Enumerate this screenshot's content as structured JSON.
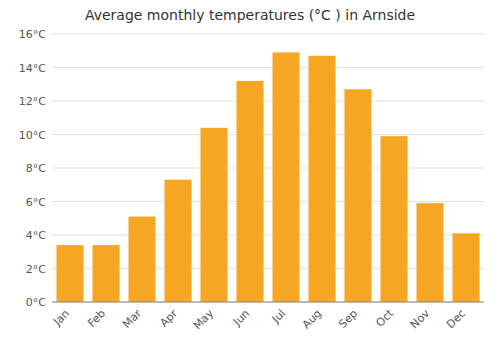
{
  "chart_data": {
    "type": "bar",
    "title": "Average monthly temperatures (°C ) in Arnside",
    "categories": [
      "Jan",
      "Feb",
      "Mar",
      "Apr",
      "May",
      "Jun",
      "Jul",
      "Aug",
      "Sep",
      "Oct",
      "Nov",
      "Dec"
    ],
    "values": [
      3.4,
      3.4,
      5.1,
      7.3,
      10.4,
      13.2,
      14.9,
      14.7,
      12.7,
      9.9,
      5.9,
      4.1
    ],
    "color": "#F5A623",
    "ylim": [
      0,
      16
    ],
    "yticks": [
      {
        "value": 0,
        "label": "0°C"
      },
      {
        "value": 2,
        "label": "2°C"
      },
      {
        "value": 4,
        "label": "4°C"
      },
      {
        "value": 6,
        "label": "6°C"
      },
      {
        "value": 8,
        "label": "8°C"
      },
      {
        "value": 10,
        "label": "10°C"
      },
      {
        "value": 12,
        "label": "12°C"
      },
      {
        "value": 14,
        "label": "14°C"
      },
      {
        "value": 16,
        "label": "16°C"
      }
    ],
    "grid": true
  }
}
